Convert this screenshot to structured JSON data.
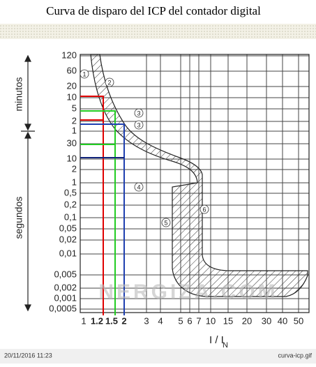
{
  "header": {
    "title": "Curva de disparo  del  ICP  del contador digital"
  },
  "y_axis": {
    "labels": [
      "120",
      "60",
      "20",
      "10",
      "5",
      "2",
      "1",
      "30",
      "10",
      "2",
      "1",
      "0,5",
      "0,2",
      "0,1",
      "0,05",
      "0,02",
      "0,01",
      "0,005",
      "0,002",
      "0,001",
      "0,0005"
    ],
    "groups": [
      "minutos",
      "segundos"
    ]
  },
  "x_axis": {
    "labels": [
      "1",
      "1.2",
      "1.5",
      "2",
      "3",
      "4",
      "5",
      "6",
      "7",
      "10",
      "15",
      "20",
      "30",
      "40",
      "50"
    ],
    "title": "I / I",
    "title_sub": "N"
  },
  "curve_labels": [
    "1",
    "2",
    "3",
    "3",
    "4",
    "5",
    "6"
  ],
  "watermark": "NERGIZA.COM",
  "footer": {
    "timestamp": "20/11/2016 11:23",
    "filename": "curva-icp.gif"
  }
}
